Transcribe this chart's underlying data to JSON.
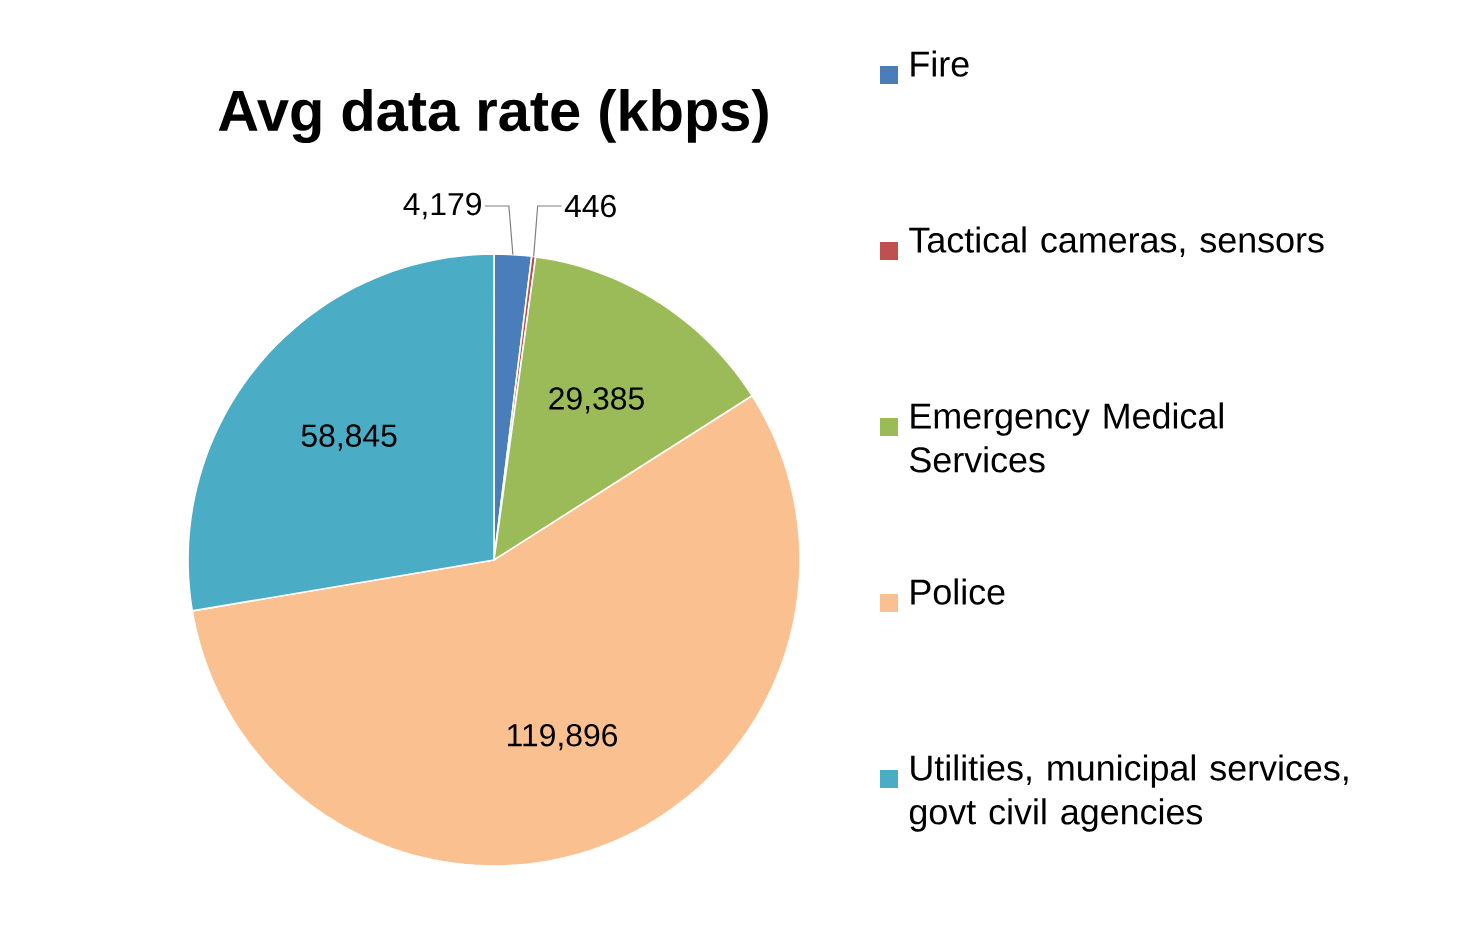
{
  "chart_data": {
    "type": "pie",
    "title": "Avg data rate (kbps)",
    "categories": [
      "Fire",
      "Tactical cameras, sensors",
      "Emergency Medical Services",
      "Police",
      "Utilities, municipal services, govt civil agencies"
    ],
    "values": [
      4179,
      446,
      29385,
      119896,
      58845
    ],
    "value_labels": [
      "4,179",
      "446",
      "29,385",
      "119,896",
      "58,845"
    ],
    "colors": [
      "#4a7ebb",
      "#c0504d",
      "#9bbb59",
      "#fac090",
      "#4bacc6"
    ],
    "legend": "right"
  }
}
